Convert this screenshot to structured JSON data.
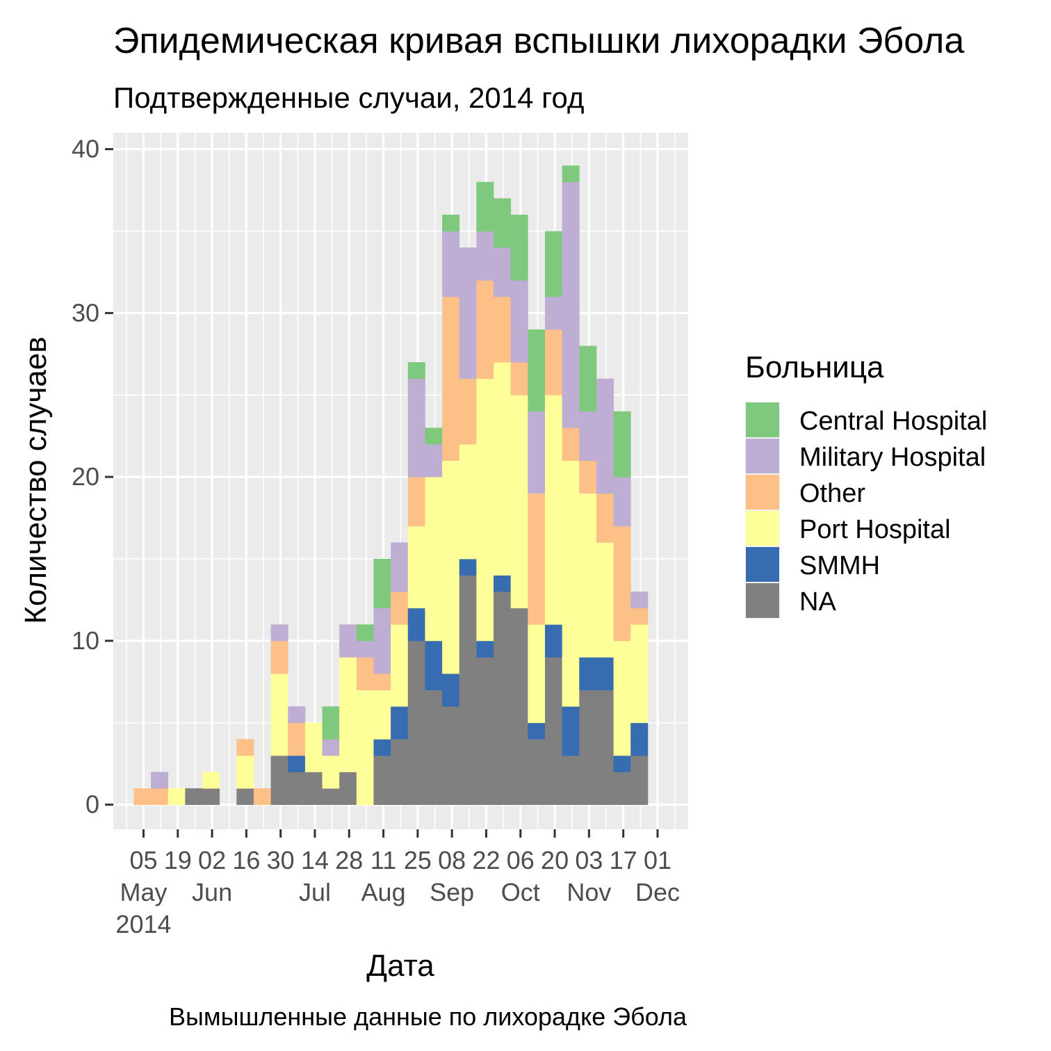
{
  "chart_data": {
    "type": "bar",
    "title": "Эпидемическая кривая вспышки лихорадки Эбола",
    "subtitle": "Подтвержденные случаи, 2014 год",
    "xlabel": "Дата",
    "ylabel": "Количество случаев",
    "caption": "Вымышленные данные по лихорадке Эбола",
    "ylim": [
      -1.5,
      41
    ],
    "y_ticks": [
      0,
      10,
      20,
      30,
      40
    ],
    "grid": true,
    "legend": {
      "title": "Больница",
      "placement": "right"
    },
    "x_tick_labels": [
      {
        "day": "05",
        "month": "May",
        "year": "2014"
      },
      {
        "day": "19",
        "month": "",
        "year": ""
      },
      {
        "day": "02",
        "month": "Jun",
        "year": ""
      },
      {
        "day": "16",
        "month": "",
        "year": ""
      },
      {
        "day": "30",
        "month": "",
        "year": ""
      },
      {
        "day": "14",
        "month": "Jul",
        "year": ""
      },
      {
        "day": "28",
        "month": "",
        "year": ""
      },
      {
        "day": "11",
        "month": "Aug",
        "year": ""
      },
      {
        "day": "25",
        "month": "",
        "year": ""
      },
      {
        "day": "08",
        "month": "Sep",
        "year": ""
      },
      {
        "day": "22",
        "month": "",
        "year": ""
      },
      {
        "day": "06",
        "month": "Oct",
        "year": ""
      },
      {
        "day": "20",
        "month": "",
        "year": ""
      },
      {
        "day": "03",
        "month": "Nov",
        "year": ""
      },
      {
        "day": "17",
        "month": "",
        "year": ""
      },
      {
        "day": "01",
        "month": "Dec",
        "year": ""
      }
    ],
    "bin": "1 week",
    "categories": [
      "2014-05-01",
      "2014-05-08",
      "2014-05-15",
      "2014-05-22",
      "2014-05-29",
      "2014-06-05",
      "2014-06-12",
      "2014-06-19",
      "2014-06-26",
      "2014-07-03",
      "2014-07-10",
      "2014-07-17",
      "2014-07-24",
      "2014-07-31",
      "2014-08-07",
      "2014-08-14",
      "2014-08-21",
      "2014-08-28",
      "2014-09-04",
      "2014-09-11",
      "2014-09-18",
      "2014-09-25",
      "2014-10-02",
      "2014-10-09",
      "2014-10-16",
      "2014-10-23",
      "2014-10-30",
      "2014-11-06",
      "2014-11-13",
      "2014-11-20",
      "2014-11-27",
      "2014-12-04"
    ],
    "series": [
      {
        "name": "NA",
        "color": "#808080",
        "values": [
          0,
          0,
          0,
          1,
          1,
          0,
          1,
          0,
          3,
          2,
          2,
          1,
          2,
          0,
          3,
          4,
          10,
          7,
          6,
          14,
          9,
          13,
          12,
          4,
          9,
          3,
          7,
          7,
          2,
          3,
          0,
          0
        ]
      },
      {
        "name": "SMMH",
        "color": "#386CB0",
        "values": [
          0,
          0,
          0,
          0,
          0,
          0,
          0,
          0,
          0,
          1,
          0,
          0,
          0,
          0,
          1,
          2,
          2,
          3,
          2,
          1,
          1,
          1,
          0,
          1,
          2,
          3,
          2,
          2,
          1,
          2,
          0,
          0
        ]
      },
      {
        "name": "Port Hospital",
        "color": "#FFFF99",
        "values": [
          0,
          0,
          1,
          0,
          1,
          0,
          2,
          0,
          5,
          0,
          3,
          2,
          7,
          7,
          3,
          5,
          5,
          10,
          13,
          7,
          16,
          13,
          13,
          6,
          14,
          15,
          10,
          7,
          7,
          6,
          0,
          0
        ]
      },
      {
        "name": "Other",
        "color": "#FDC086",
        "values": [
          1,
          1,
          0,
          0,
          0,
          0,
          1,
          1,
          2,
          2,
          0,
          0,
          0,
          2,
          1,
          2,
          3,
          0,
          10,
          4,
          6,
          4,
          2,
          8,
          4,
          2,
          2,
          3,
          7,
          1,
          0,
          0
        ]
      },
      {
        "name": "Military Hospital",
        "color": "#BEAED4",
        "values": [
          0,
          1,
          0,
          0,
          0,
          0,
          0,
          0,
          1,
          1,
          0,
          1,
          2,
          1,
          4,
          3,
          6,
          2,
          4,
          8,
          3,
          3,
          5,
          5,
          2,
          15,
          3,
          7,
          3,
          1,
          0,
          0
        ]
      },
      {
        "name": "Central Hospital",
        "color": "#7FC97F",
        "values": [
          0,
          0,
          0,
          0,
          0,
          0,
          0,
          0,
          0,
          0,
          0,
          2,
          0,
          1,
          3,
          0,
          1,
          1,
          1,
          0,
          3,
          3,
          4,
          5,
          4,
          1,
          4,
          0,
          4,
          0,
          0,
          0
        ]
      }
    ],
    "legend_order": [
      "Central Hospital",
      "Military Hospital",
      "Other",
      "Port Hospital",
      "SMMH",
      "NA"
    ]
  }
}
